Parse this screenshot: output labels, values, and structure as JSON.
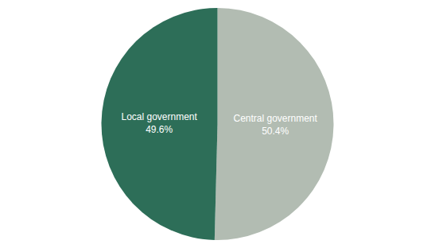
{
  "chart_data": {
    "type": "pie",
    "categories": [
      "Central government",
      "Local government"
    ],
    "values": [
      50.4,
      49.6
    ],
    "value_labels": [
      "50.4%",
      "49.6%"
    ],
    "data_labels": true,
    "colors": [
      "#b2bcb2",
      "#2d6e58"
    ]
  }
}
